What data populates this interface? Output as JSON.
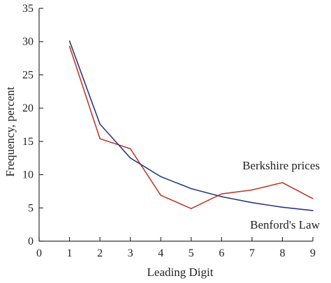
{
  "chart_data": {
    "type": "line",
    "title": "",
    "xlabel": "Leading Digit",
    "ylabel": "Frequency, percent",
    "xlim": [
      0,
      9
    ],
    "ylim": [
      0,
      35
    ],
    "xticks": [
      0,
      1,
      2,
      3,
      4,
      5,
      6,
      7,
      8,
      9
    ],
    "yticks": [
      0,
      5,
      10,
      15,
      20,
      25,
      30,
      35
    ],
    "grid": false,
    "series": [
      {
        "name": "Berkshire prices",
        "color": "#c0392b",
        "x": [
          1,
          2,
          3,
          4,
          5,
          6,
          7,
          8,
          9
        ],
        "y": [
          29.3,
          15.4,
          13.9,
          6.9,
          4.9,
          7.1,
          7.7,
          8.8,
          6.4
        ]
      },
      {
        "name": "Benford's Law",
        "color": "#2b3a80",
        "x": [
          1,
          2,
          3,
          4,
          5,
          6,
          7,
          8,
          9
        ],
        "y": [
          30.1,
          17.6,
          12.5,
          9.7,
          7.9,
          6.7,
          5.8,
          5.1,
          4.6
        ]
      }
    ],
    "annotations": [
      {
        "text": "Berkshire prices",
        "series": 0
      },
      {
        "text": "Benford's Law",
        "series": 1
      }
    ]
  }
}
